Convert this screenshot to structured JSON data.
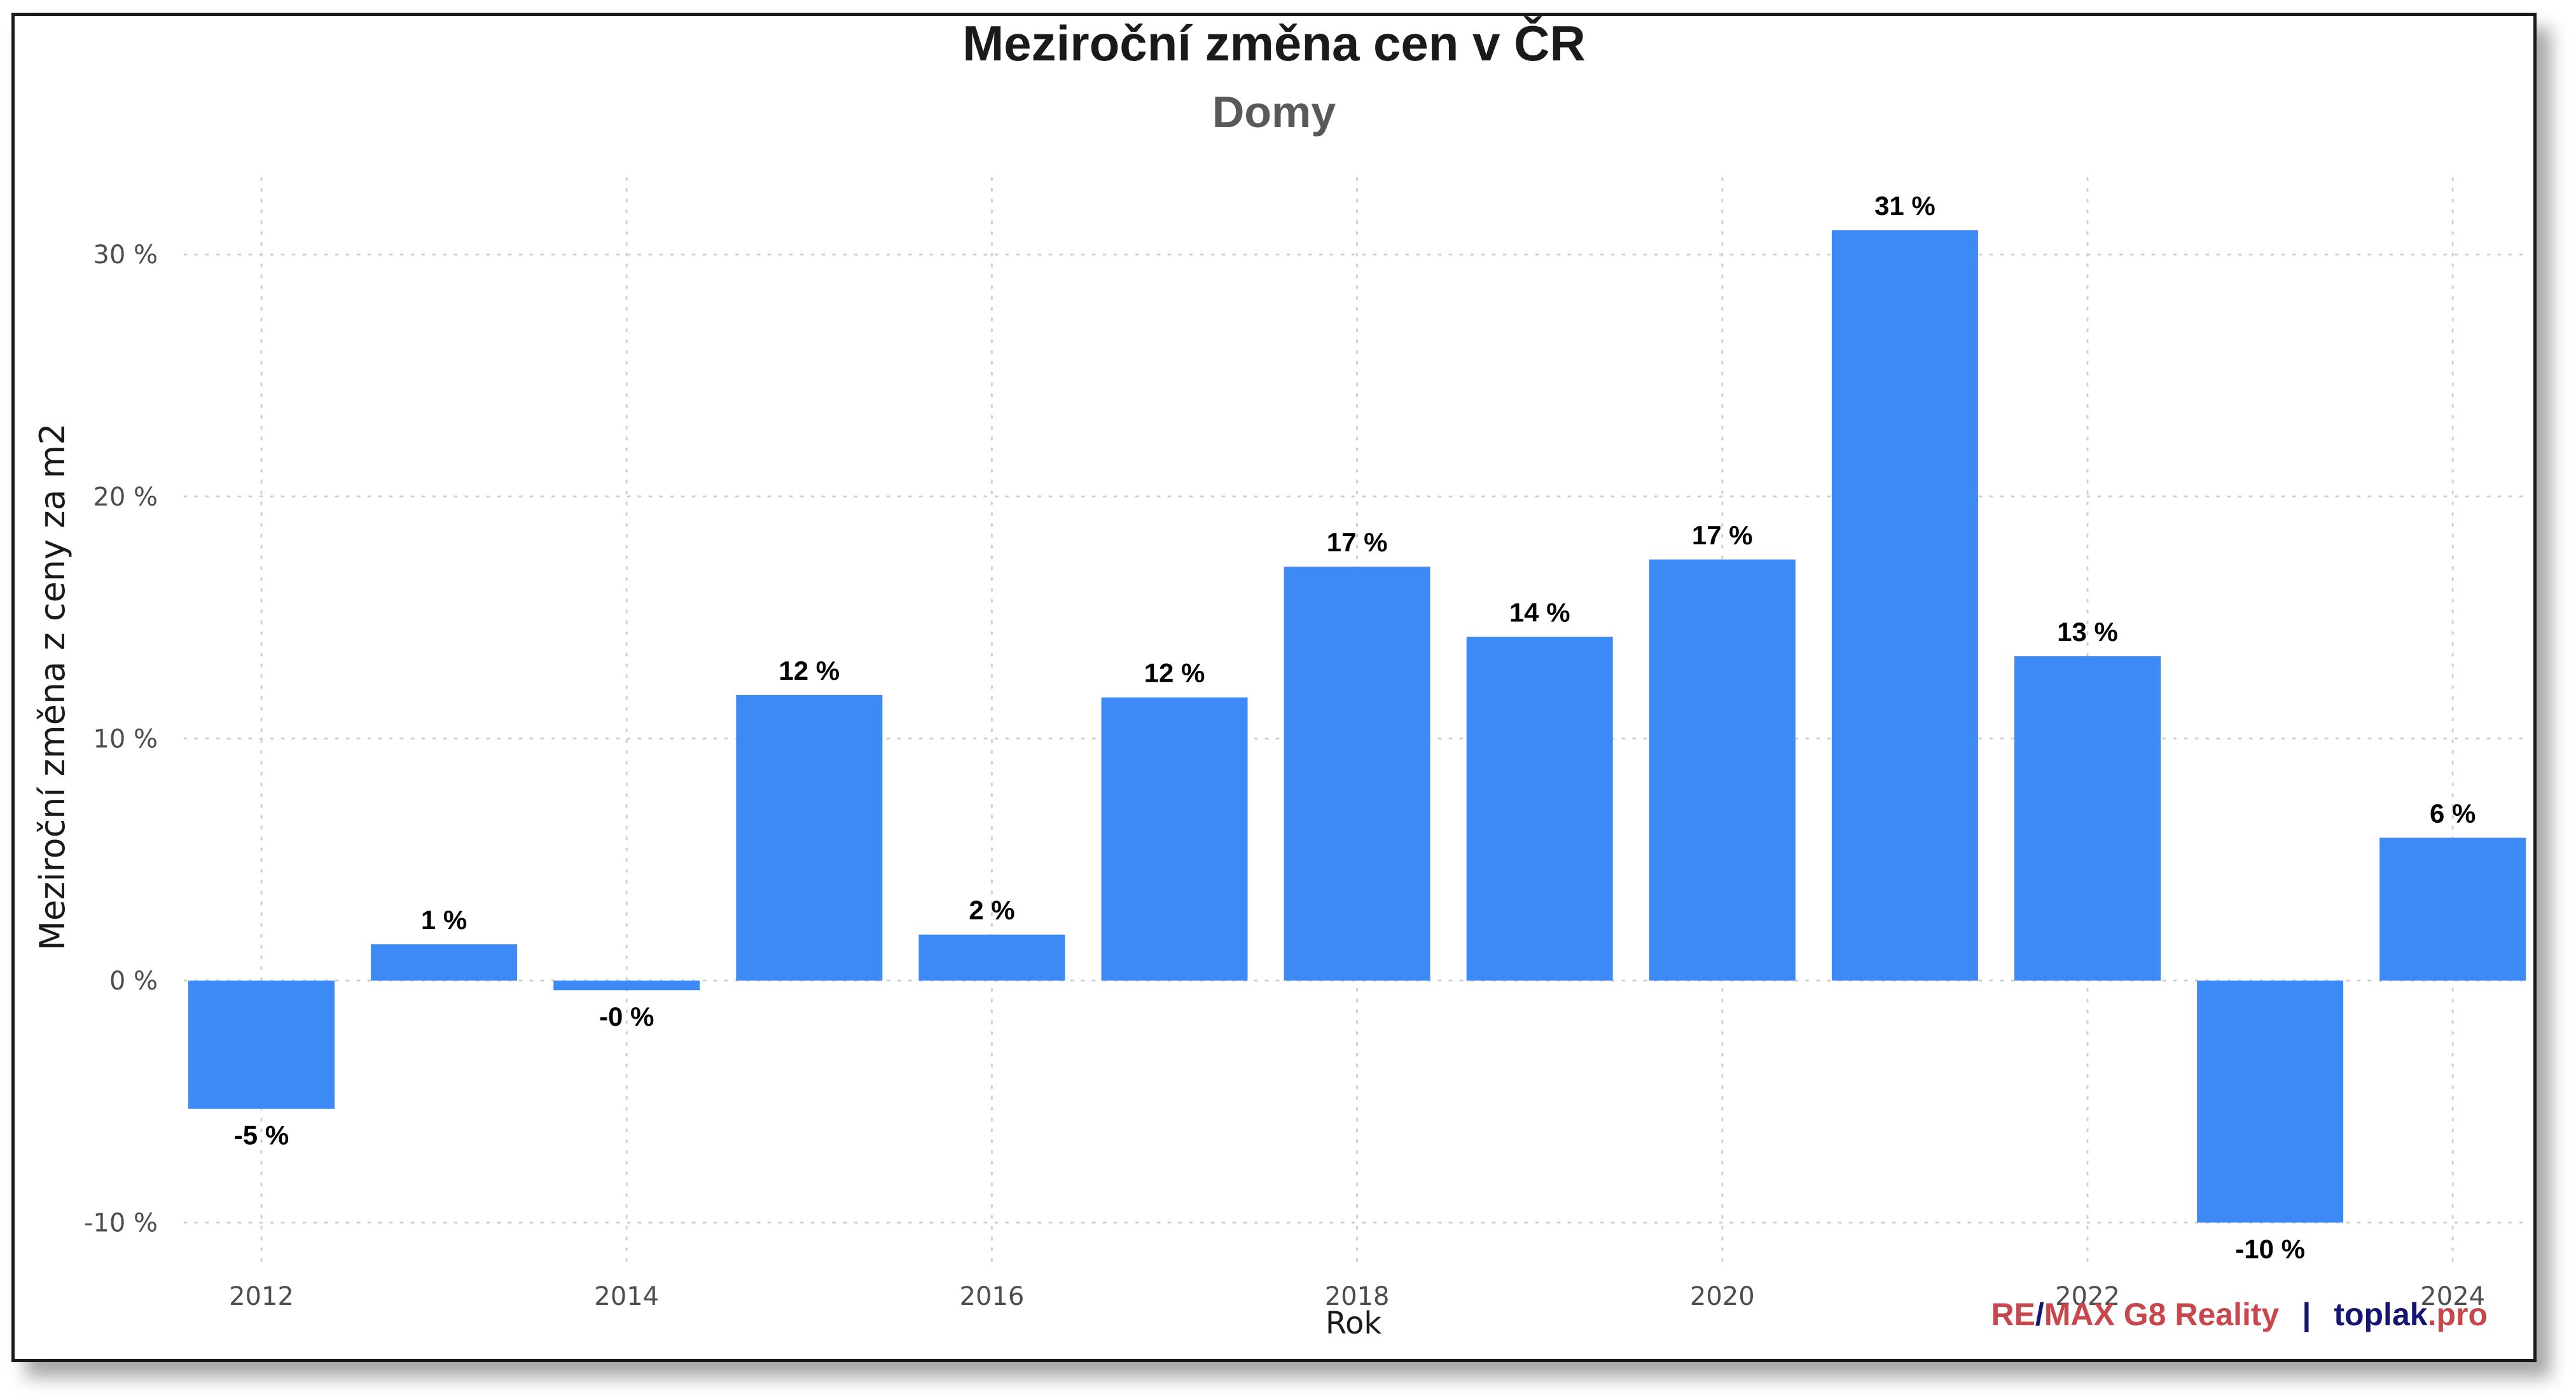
{
  "chart_data": {
    "type": "bar",
    "title": "Meziroční změna cen v ČR",
    "subtitle": "Domy",
    "xlabel": "Rok",
    "ylabel": "Meziroční změna z ceny za m2",
    "categories": [
      "2012",
      "2013",
      "2014",
      "2015",
      "2016",
      "2017",
      "2018",
      "2019",
      "2020",
      "2021",
      "2022",
      "2023",
      "2024"
    ],
    "values": [
      -5.3,
      1.5,
      -0.4,
      11.8,
      1.9,
      11.7,
      17.1,
      14.2,
      17.4,
      31.0,
      13.4,
      -10.0,
      5.9
    ],
    "value_labels": [
      "-5 %",
      "1 %",
      "-0 %",
      "12 %",
      "2 %",
      "12 %",
      "17 %",
      "14 %",
      "17 %",
      "31 %",
      "13 %",
      "-10 %",
      "6 %"
    ],
    "ylim": [
      -11.0,
      33.0
    ],
    "yticks": [
      -10,
      0,
      10,
      20,
      30
    ],
    "ytick_labels": [
      "-10 %",
      "0 %",
      "10 %",
      "20 %",
      "30 %"
    ],
    "xticks": [
      "2012",
      "2014",
      "2016",
      "2018",
      "2020",
      "2022",
      "2024"
    ],
    "grid": true,
    "bar_color": "#3d8af7",
    "grid_color": "#cfcfcf"
  },
  "credit": {
    "re": "RE",
    "slash": "/",
    "max": "MAX G8 Reality",
    "sep": "|",
    "toplak": "toplak",
    "pro": ".pro",
    "red": "#c8474d",
    "navy": "#151573"
  }
}
